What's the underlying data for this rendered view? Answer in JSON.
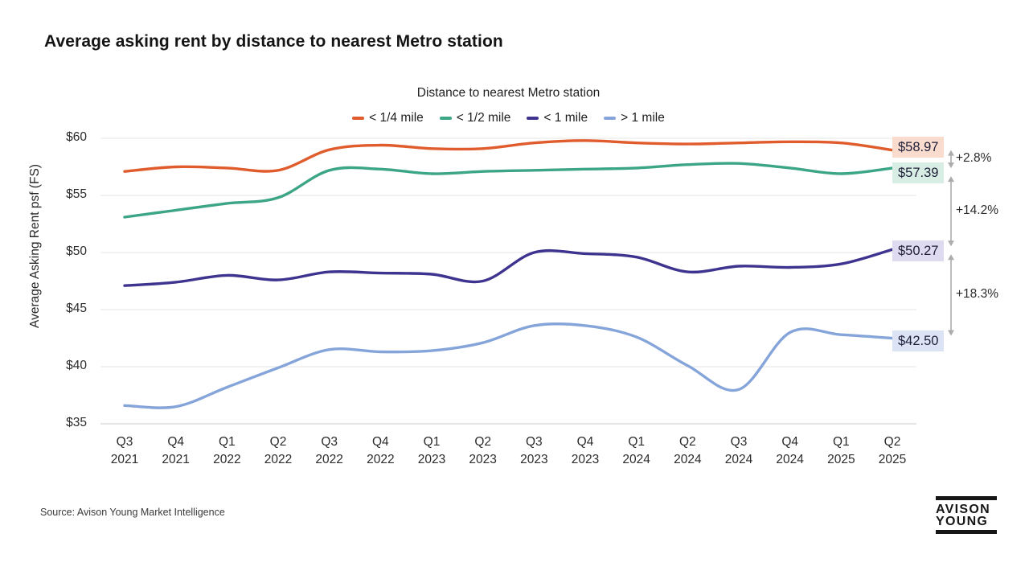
{
  "title": "Average asking rent by distance to nearest Metro station",
  "source": "Source: Avison Young Market Intelligence",
  "logo": {
    "line1": "AVISON",
    "line2": "YOUNG"
  },
  "chart_data": {
    "type": "line",
    "title": "Average asking rent by distance to nearest Metro station",
    "legend_title": "Distance to nearest Metro station",
    "legend_position": "top-center",
    "grid": true,
    "xlabel": "",
    "ylabel": "Average Asking Rent psf (FS)",
    "ylim": [
      35,
      60
    ],
    "yticks": [
      60,
      55,
      50,
      45,
      40,
      35
    ],
    "ytick_labels": [
      "$60",
      "$55",
      "$50",
      "$45",
      "$40",
      "$35"
    ],
    "categories": [
      "Q3 2021",
      "Q4 2021",
      "Q1 2022",
      "Q2 2022",
      "Q3 2022",
      "Q4 2022",
      "Q1 2023",
      "Q2 2023",
      "Q3 2023",
      "Q4 2023",
      "Q1 2024",
      "Q2 2024",
      "Q3 2024",
      "Q4 2024",
      "Q1 2025",
      "Q2 2025"
    ],
    "series": [
      {
        "name": "< 1/4 mile",
        "color": "#E05C2D",
        "label_bg": "#F9DCCE",
        "end_label": "$58.97",
        "values": [
          57.1,
          57.5,
          57.4,
          57.2,
          59.0,
          59.4,
          59.1,
          59.1,
          59.6,
          59.8,
          59.6,
          59.5,
          59.6,
          59.7,
          59.6,
          58.97
        ]
      },
      {
        "name": "< 1/2 mile",
        "color": "#3BA586",
        "label_bg": "#D8EEE4",
        "end_label": "$57.39",
        "values": [
          53.1,
          53.7,
          54.3,
          54.8,
          57.2,
          57.3,
          56.9,
          57.1,
          57.2,
          57.3,
          57.4,
          57.7,
          57.8,
          57.4,
          56.9,
          57.39
        ]
      },
      {
        "name": "< 1 mile",
        "color": "#3E3490",
        "label_bg": "#DEDAF0",
        "end_label": "$50.27",
        "values": [
          47.1,
          47.4,
          48.0,
          47.6,
          48.3,
          48.2,
          48.1,
          47.5,
          50.0,
          49.9,
          49.6,
          48.3,
          48.8,
          48.7,
          49.0,
          50.27
        ]
      },
      {
        "name": "> 1 mile",
        "color": "#85A5DA",
        "label_bg": "#DBE3F5",
        "end_label": "$42.50",
        "values": [
          36.6,
          36.5,
          38.2,
          39.9,
          41.5,
          41.3,
          41.4,
          42.1,
          43.6,
          43.6,
          42.6,
          40.1,
          38.0,
          43.0,
          42.8,
          42.5
        ]
      }
    ],
    "annotations": [
      {
        "label": "+2.8%"
      },
      {
        "label": "+14.2%"
      },
      {
        "label": "+18.3%"
      }
    ]
  }
}
